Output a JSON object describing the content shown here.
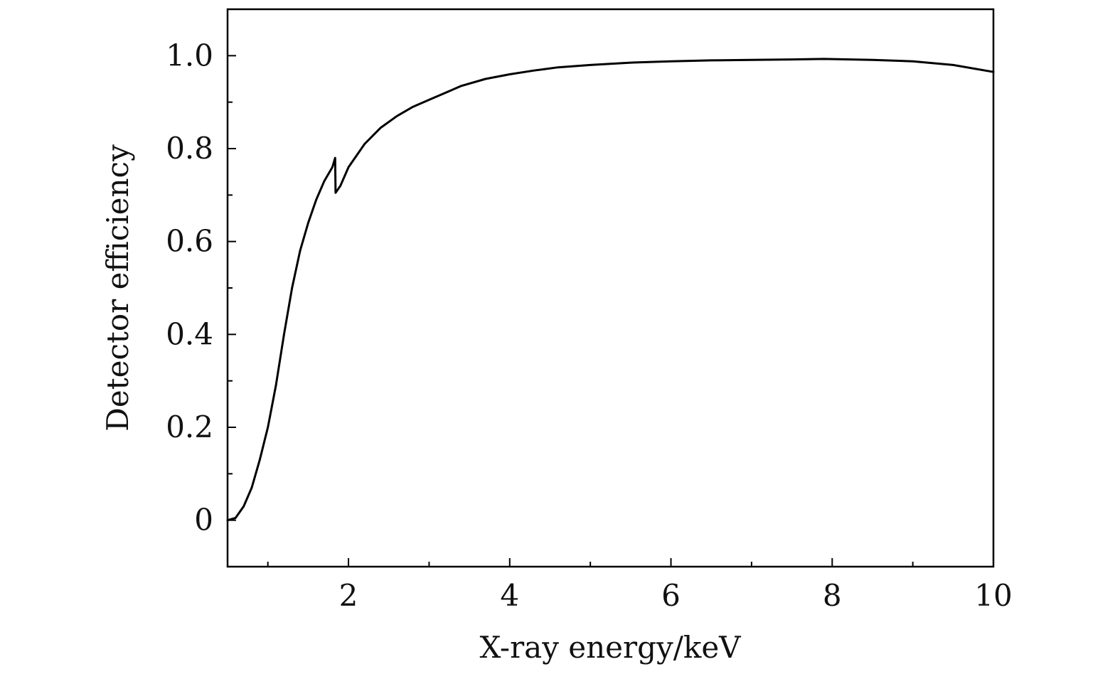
{
  "chart_data": {
    "type": "line",
    "title": "",
    "xlabel": "X-ray energy/keV",
    "ylabel": "Detector efficiency",
    "xlim": [
      0.5,
      10
    ],
    "ylim": [
      -0.1,
      1.1
    ],
    "x_ticks": [
      2,
      4,
      6,
      8,
      10
    ],
    "x_tick_labels": [
      "2",
      "4",
      "6",
      "8",
      "10"
    ],
    "x_minor_ticks": [
      1,
      3,
      5,
      7,
      9
    ],
    "y_ticks": [
      0,
      0.2,
      0.4,
      0.6,
      0.8,
      1.0
    ],
    "y_tick_labels": [
      "0",
      "0.2",
      "0.4",
      "0.6",
      "0.8",
      "1.0"
    ],
    "y_minor_ticks": [
      0.1,
      0.3,
      0.5,
      0.7,
      0.9
    ],
    "grid": false,
    "legend": "none",
    "line_color": "#000000",
    "series": [
      {
        "x": [
          0.5,
          0.6,
          0.7,
          0.8,
          0.9,
          1.0,
          1.1,
          1.2,
          1.3,
          1.4,
          1.5,
          1.6,
          1.7,
          1.8,
          1.835,
          1.84,
          1.9,
          2.0,
          2.2,
          2.4,
          2.6,
          2.8,
          3.0,
          3.2,
          3.4,
          3.7,
          4.0,
          4.3,
          4.6,
          5.0,
          5.5,
          6.0,
          6.5,
          7.0,
          7.5,
          7.9,
          8.5,
          9.0,
          9.5,
          10.0
        ],
        "y": [
          0.0,
          0.005,
          0.03,
          0.07,
          0.13,
          0.2,
          0.29,
          0.4,
          0.5,
          0.58,
          0.64,
          0.69,
          0.73,
          0.76,
          0.78,
          0.705,
          0.72,
          0.76,
          0.81,
          0.845,
          0.87,
          0.89,
          0.905,
          0.92,
          0.935,
          0.95,
          0.96,
          0.968,
          0.975,
          0.98,
          0.985,
          0.988,
          0.99,
          0.991,
          0.992,
          0.993,
          0.991,
          0.988,
          0.98,
          0.965
        ]
      }
    ]
  }
}
